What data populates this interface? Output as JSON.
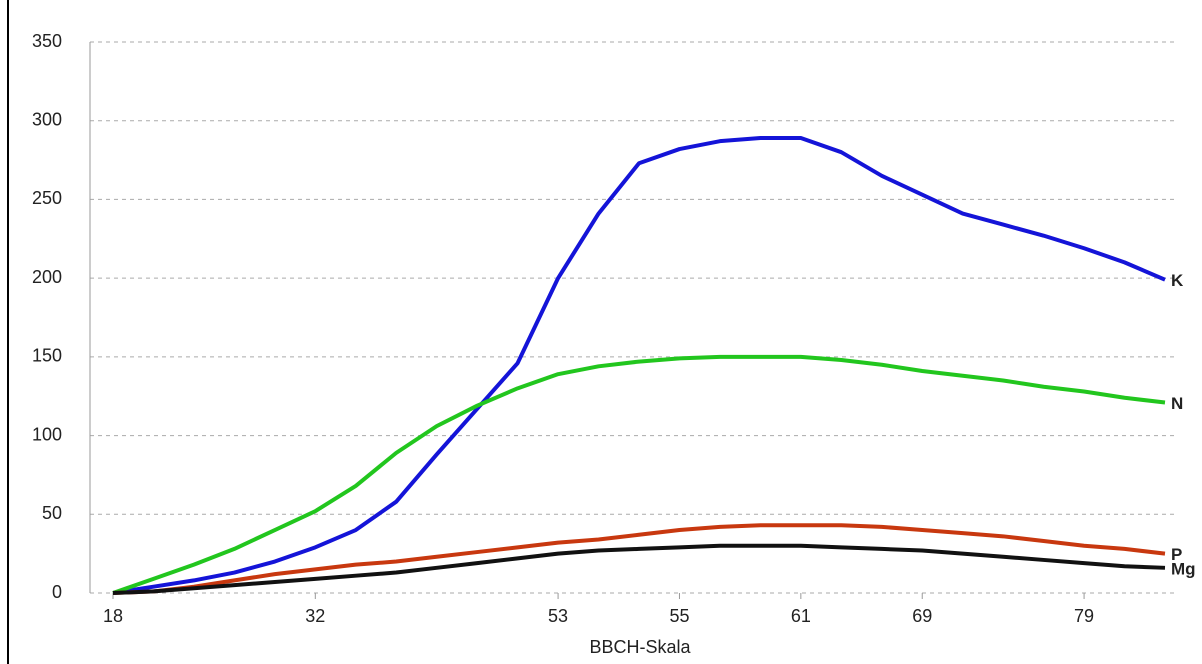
{
  "chart_data": {
    "type": "line",
    "x_label": "BBCH-Skala",
    "categories": [
      "18",
      null,
      null,
      null,
      null,
      "32",
      null,
      null,
      null,
      null,
      null,
      "53",
      null,
      null,
      "55",
      null,
      null,
      "61",
      null,
      null,
      "69",
      null,
      null,
      null,
      "79",
      null,
      null
    ],
    "series": [
      {
        "name": "K",
        "color": "#1414d8",
        "values": [
          0,
          4,
          8,
          13,
          20,
          29,
          40,
          58,
          88,
          117,
          146,
          200,
          241,
          273,
          282,
          287,
          289,
          289,
          280,
          265,
          253,
          241,
          234,
          227,
          219,
          210,
          199
        ]
      },
      {
        "name": "N",
        "color": "#22c61e",
        "values": [
          0,
          9,
          18,
          28,
          40,
          52,
          68,
          89,
          106,
          119,
          130,
          139,
          144,
          147,
          149,
          150,
          150,
          150,
          148,
          145,
          141,
          138,
          135,
          131,
          128,
          124,
          121
        ]
      },
      {
        "name": "P",
        "color": "#c8380f",
        "values": [
          0,
          1,
          4,
          8,
          12,
          15,
          18,
          20,
          23,
          26,
          29,
          32,
          34,
          37,
          40,
          42,
          43,
          43,
          43,
          42,
          40,
          38,
          36,
          33,
          30,
          28,
          25
        ]
      },
      {
        "name": "Mg",
        "color": "#111111",
        "values": [
          0,
          1,
          3,
          5,
          7,
          9,
          11,
          13,
          16,
          19,
          22,
          25,
          27,
          28,
          29,
          30,
          30,
          30,
          29,
          28,
          27,
          25,
          23,
          21,
          19,
          17,
          16
        ]
      }
    ],
    "ylim": [
      0,
      350
    ],
    "yticks": [
      0,
      50,
      100,
      150,
      200,
      250,
      300,
      350
    ],
    "grid": true
  }
}
